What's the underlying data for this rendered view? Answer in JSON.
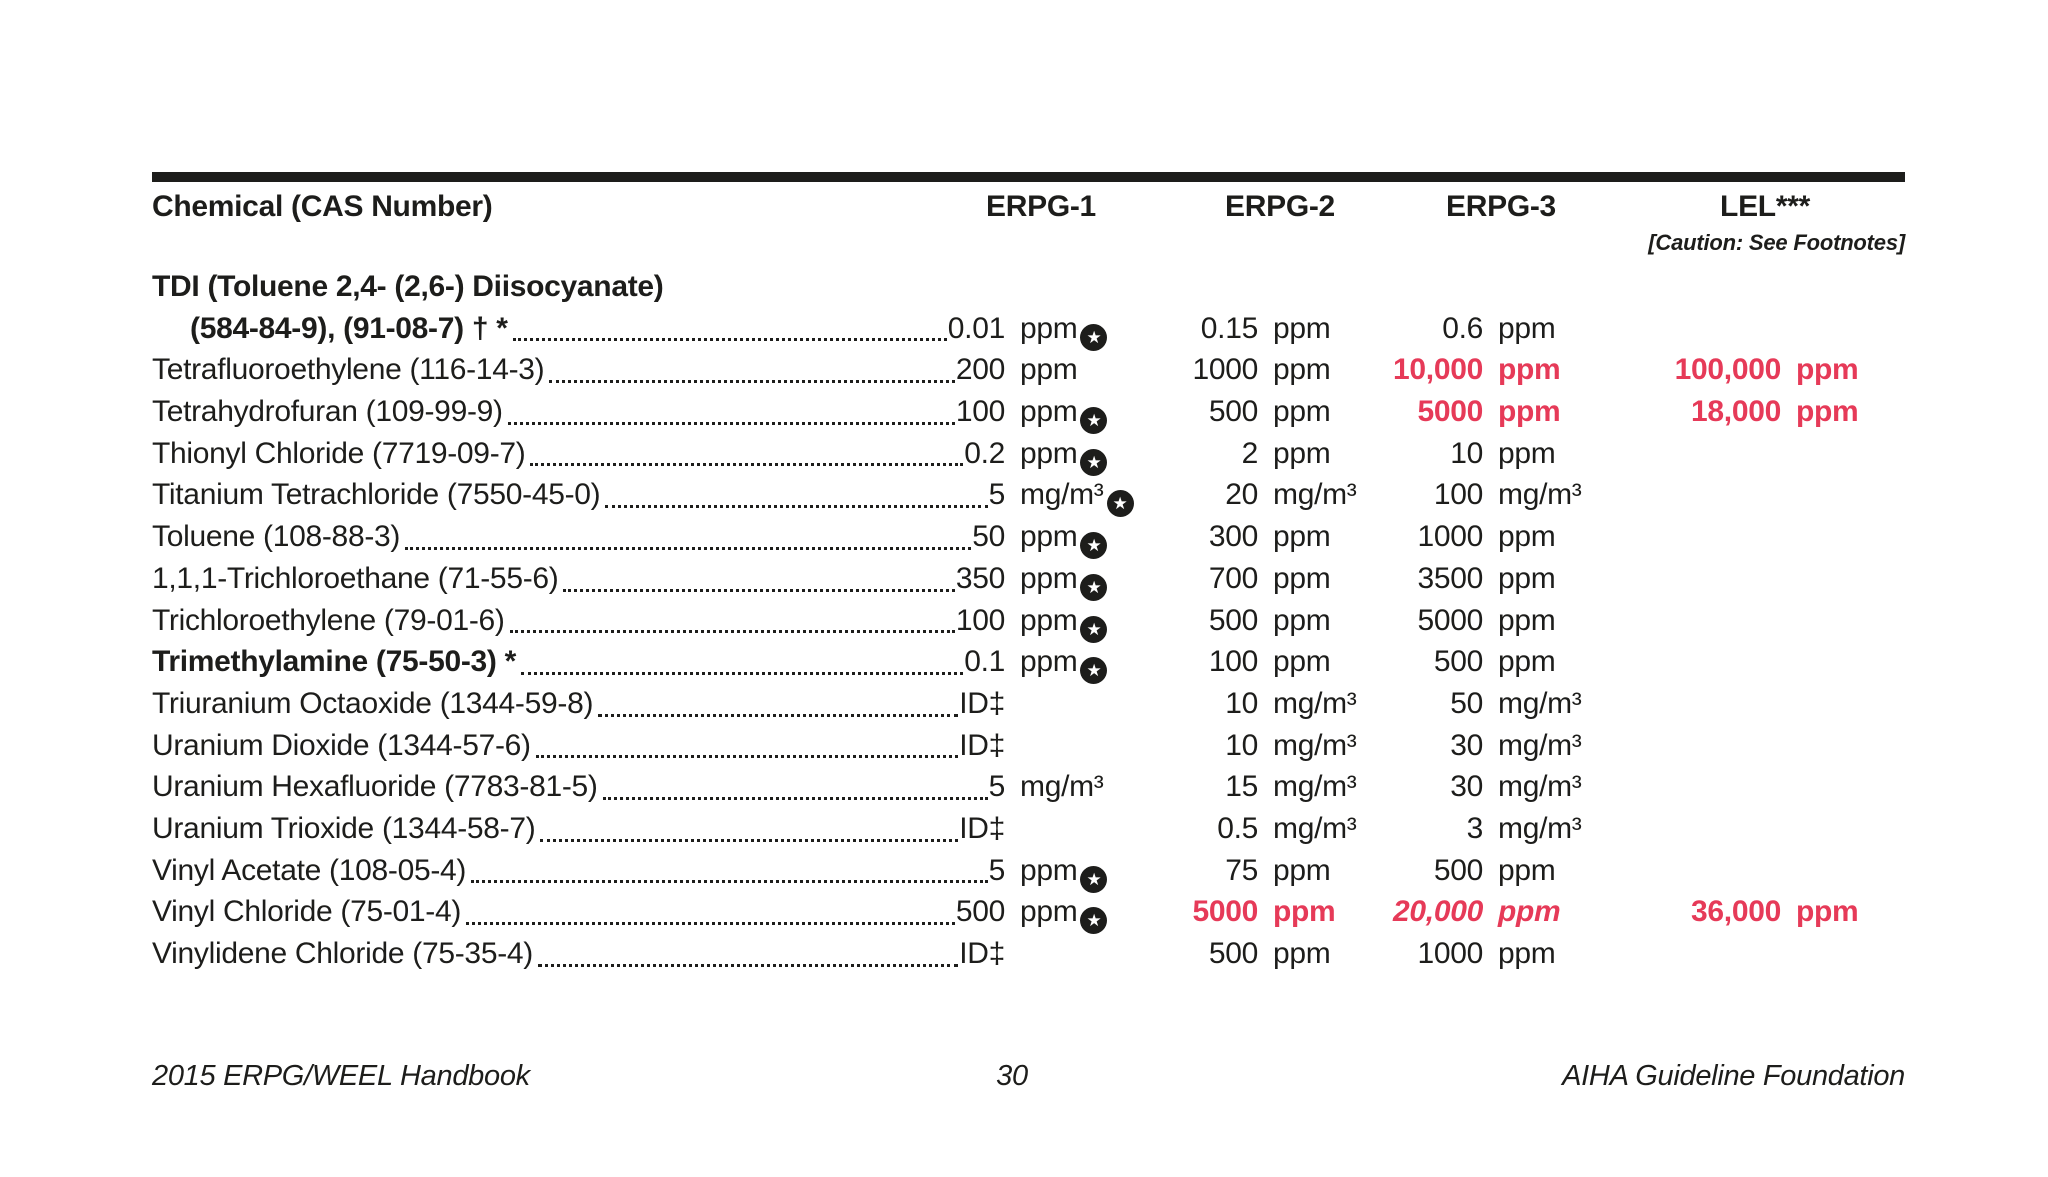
{
  "colors": {
    "text": "#1d1d1b",
    "alert_red": "#e63a58"
  },
  "icons": {
    "star_marker": "★",
    "star_meaning": "circled-star-flag"
  },
  "table": {
    "headers": {
      "chemical": "Chemical (CAS Number)",
      "erpg1": "ERPG-1",
      "erpg2": "ERPG-2",
      "erpg3": "ERPG-3",
      "lel": "LEL***",
      "caution": "[Caution: See Footnotes]"
    },
    "rows": [
      {
        "name": "TDI (Toluene 2,4- (2,6-) Diisocyanate)",
        "bold": true,
        "leader": false
      },
      {
        "name": "(584-84-9), (91-08-7) † *",
        "bold": true,
        "indent": true,
        "leader": true,
        "erpg1": {
          "value": "0.01",
          "unit": "ppm",
          "star": true
        },
        "erpg2": {
          "value": "0.15",
          "unit": "ppm"
        },
        "erpg3": {
          "value": "0.6",
          "unit": "ppm"
        }
      },
      {
        "name": "Tetrafluoroethylene (116-14-3)",
        "leader": true,
        "erpg1": {
          "value": "200",
          "unit": "ppm"
        },
        "erpg2": {
          "value": "1000",
          "unit": "ppm"
        },
        "erpg3": {
          "value": "10,000",
          "unit": "ppm",
          "red": true
        },
        "lel": {
          "value": "100,000",
          "unit": "ppm",
          "red": true
        }
      },
      {
        "name": "Tetrahydrofuran (109-99-9)",
        "leader": true,
        "erpg1": {
          "value": "100",
          "unit": "ppm",
          "star": true
        },
        "erpg2": {
          "value": "500",
          "unit": "ppm"
        },
        "erpg3": {
          "value": "5000",
          "unit": "ppm",
          "red": true
        },
        "lel": {
          "value": "18,000",
          "unit": "ppm",
          "red": true
        }
      },
      {
        "name": "Thionyl Chloride (7719-09-7)",
        "leader": true,
        "erpg1": {
          "value": "0.2",
          "unit": "ppm",
          "star": true
        },
        "erpg2": {
          "value": "2",
          "unit": "ppm"
        },
        "erpg3": {
          "value": "10",
          "unit": "ppm"
        }
      },
      {
        "name": "Titanium Tetrachloride (7550-45-0)",
        "leader": true,
        "erpg1": {
          "value": "5",
          "unit": "mg/m³",
          "star": true
        },
        "erpg2": {
          "value": "20",
          "unit": "mg/m³"
        },
        "erpg3": {
          "value": "100",
          "unit": "mg/m³"
        }
      },
      {
        "name": "Toluene (108-88-3)",
        "leader": true,
        "erpg1": {
          "value": "50",
          "unit": "ppm",
          "star": true
        },
        "erpg2": {
          "value": "300",
          "unit": "ppm"
        },
        "erpg3": {
          "value": "1000",
          "unit": "ppm"
        }
      },
      {
        "name": "1,1,1-Trichloroethane (71-55-6)",
        "leader": true,
        "erpg1": {
          "value": "350",
          "unit": "ppm",
          "star": true
        },
        "erpg2": {
          "value": "700",
          "unit": "ppm"
        },
        "erpg3": {
          "value": "3500",
          "unit": "ppm"
        }
      },
      {
        "name": "Trichloroethylene (79-01-6)",
        "leader": true,
        "erpg1": {
          "value": "100",
          "unit": "ppm",
          "star": true
        },
        "erpg2": {
          "value": "500",
          "unit": "ppm"
        },
        "erpg3": {
          "value": "5000",
          "unit": "ppm"
        }
      },
      {
        "name": "Trimethylamine (75-50-3) *",
        "bold": true,
        "leader": true,
        "erpg1": {
          "value": "0.1",
          "unit": "ppm",
          "star": true
        },
        "erpg2": {
          "value": "100",
          "unit": "ppm"
        },
        "erpg3": {
          "value": "500",
          "unit": "ppm"
        }
      },
      {
        "name": "Triuranium Octaoxide (1344-59-8)",
        "leader": true,
        "erpg1": {
          "value": "ID‡",
          "unit": ""
        },
        "erpg2": {
          "value": "10",
          "unit": "mg/m³"
        },
        "erpg3": {
          "value": "50",
          "unit": "mg/m³"
        }
      },
      {
        "name": "Uranium Dioxide (1344-57-6)",
        "leader": true,
        "erpg1": {
          "value": "ID‡",
          "unit": ""
        },
        "erpg2": {
          "value": "10",
          "unit": "mg/m³"
        },
        "erpg3": {
          "value": "30",
          "unit": "mg/m³"
        }
      },
      {
        "name": "Uranium Hexafluoride (7783-81-5)",
        "leader": true,
        "erpg1": {
          "value": "5",
          "unit": "mg/m³"
        },
        "erpg2": {
          "value": "15",
          "unit": "mg/m³"
        },
        "erpg3": {
          "value": "30",
          "unit": "mg/m³"
        }
      },
      {
        "name": "Uranium Trioxide (1344-58-7)",
        "leader": true,
        "erpg1": {
          "value": "ID‡",
          "unit": ""
        },
        "erpg2": {
          "value": "0.5",
          "unit": "mg/m³"
        },
        "erpg3": {
          "value": "3",
          "unit": "mg/m³"
        }
      },
      {
        "name": "Vinyl Acetate (108-05-4)",
        "leader": true,
        "erpg1": {
          "value": "5",
          "unit": "ppm",
          "star": true
        },
        "erpg2": {
          "value": "75",
          "unit": "ppm"
        },
        "erpg3": {
          "value": "500",
          "unit": "ppm"
        }
      },
      {
        "name": "Vinyl Chloride (75-01-4)",
        "leader": true,
        "erpg1": {
          "value": "500",
          "unit": "ppm",
          "star": true
        },
        "erpg2": {
          "value": "5000",
          "unit": "ppm",
          "red": true
        },
        "erpg3": {
          "value": "20,000",
          "unit": "ppm",
          "red": true,
          "italic": true
        },
        "lel": {
          "value": "36,000",
          "unit": "ppm",
          "red": true
        }
      },
      {
        "name": "Vinylidene Chloride (75-35-4)",
        "leader": true,
        "erpg1": {
          "value": "ID‡",
          "unit": ""
        },
        "erpg2": {
          "value": "500",
          "unit": "ppm"
        },
        "erpg3": {
          "value": "1000",
          "unit": "ppm"
        }
      }
    ]
  },
  "footer": {
    "left": "2015 ERPG/WEEL Handbook",
    "page": "30",
    "right": "AIHA Guideline Foundation"
  }
}
